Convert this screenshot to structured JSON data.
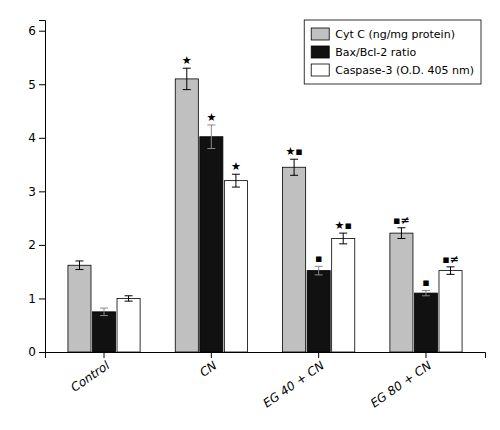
{
  "chart_data": {
    "type": "bar",
    "categories": [
      "Control",
      "CN",
      "EG 40 + CN",
      "EG 80 + CN"
    ],
    "series": [
      {
        "name": "Cyt C (ng/mg protein)",
        "color": "#C0C0C0",
        "values": [
          1.62,
          5.1,
          3.45,
          2.22
        ],
        "errors": [
          0.08,
          0.2,
          0.15,
          0.1
        ],
        "annotations": [
          null,
          "★",
          "★▪",
          "▪≠"
        ]
      },
      {
        "name": "Bax/Bcl-2 ratio",
        "color": "#111111",
        "values": [
          0.75,
          4.02,
          1.52,
          1.1
        ],
        "errors": [
          0.07,
          0.22,
          0.08,
          0.05
        ],
        "annotations": [
          null,
          "★",
          "▪",
          "▪"
        ]
      },
      {
        "name": "Caspase-3 (O.D. 405 nm)",
        "color": "#ffffff",
        "values": [
          1.0,
          3.2,
          2.12,
          1.52
        ],
        "errors": [
          0.05,
          0.12,
          0.1,
          0.07
        ],
        "annotations": [
          null,
          "★",
          "★▪",
          "▪≠"
        ]
      }
    ],
    "ylim": [
      0,
      6.2
    ],
    "yticks": [
      0,
      1,
      2,
      3,
      4,
      5,
      6
    ],
    "grid": false,
    "legend": "upper right"
  }
}
